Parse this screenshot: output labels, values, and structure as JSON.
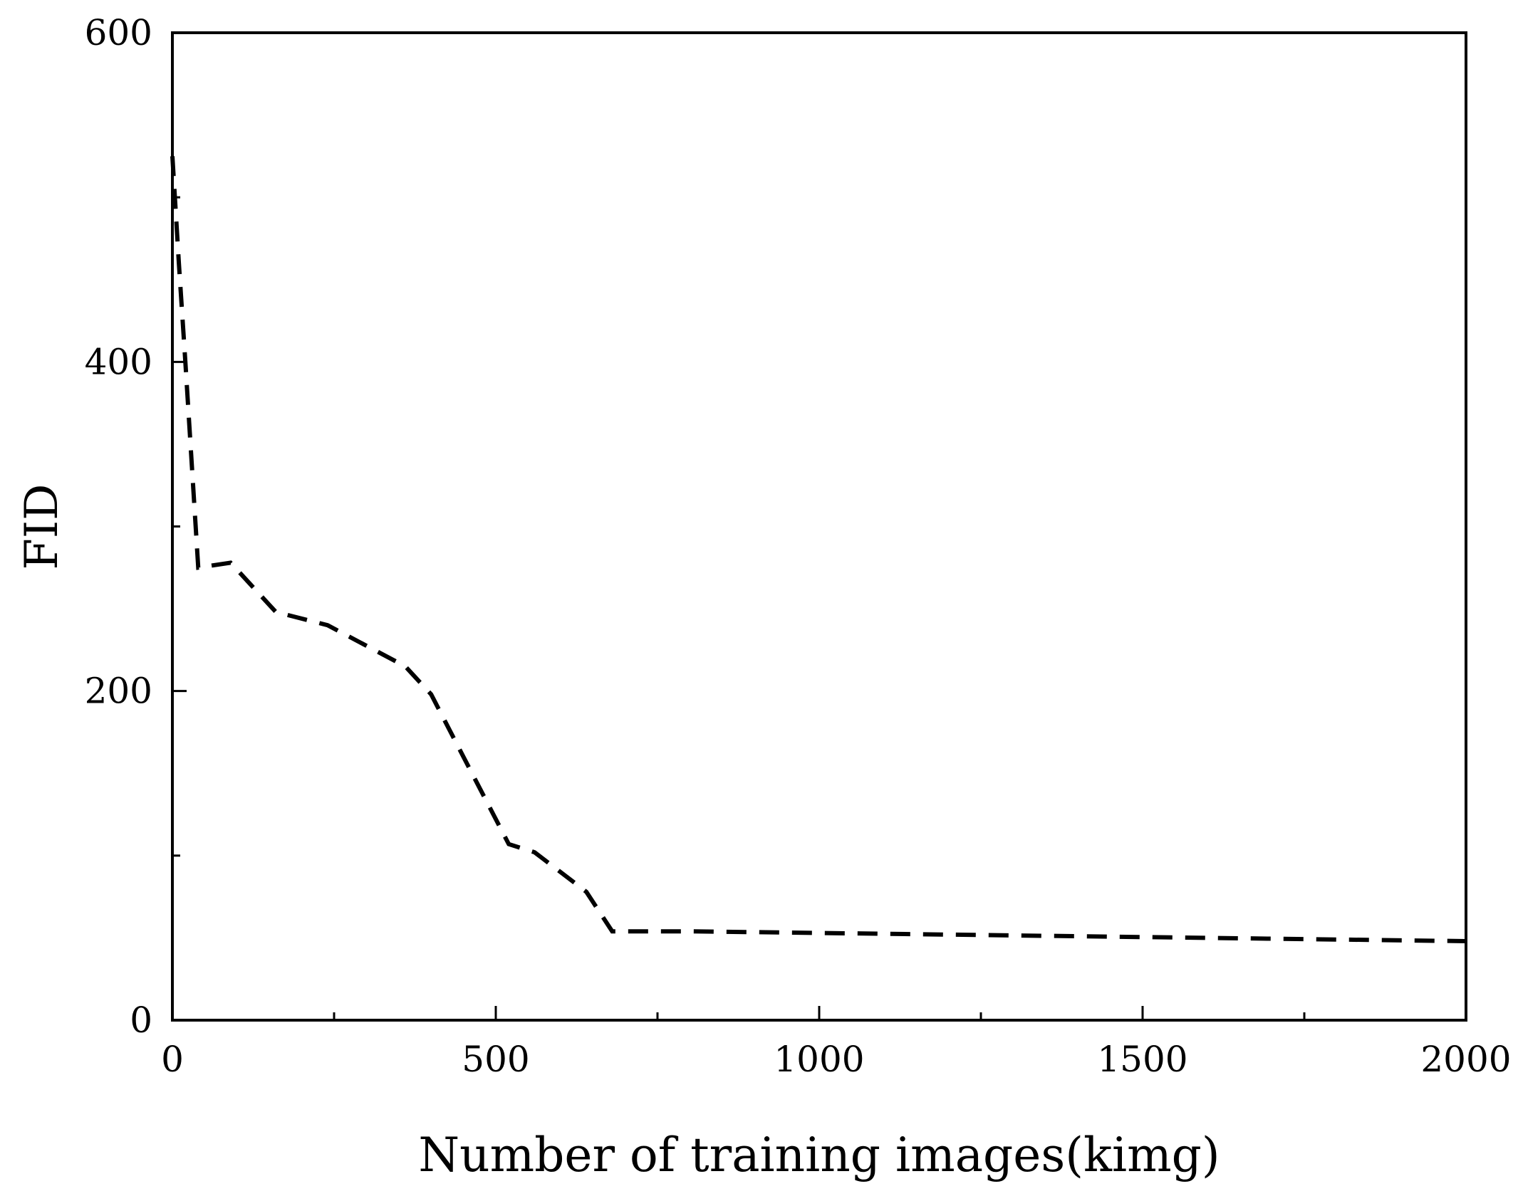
{
  "chart_data": {
    "type": "line",
    "xlabel": "Number of training images(kimg)",
    "ylabel": "FID",
    "xlim": [
      0,
      2000
    ],
    "ylim": [
      0,
      600
    ],
    "x_ticks": [
      0,
      500,
      1000,
      1500,
      2000
    ],
    "x_tick_labels": [
      "0",
      "500",
      "1000",
      "1500",
      "2000"
    ],
    "y_ticks": [
      0,
      200,
      400,
      600
    ],
    "y_tick_labels": [
      "0",
      "200",
      "400",
      "600"
    ],
    "x_minor_ticks": [
      250,
      750,
      1250,
      1750
    ],
    "y_minor_ticks": [
      100,
      300,
      500
    ],
    "grid": false,
    "series": [
      {
        "color": "#000000",
        "line_style": "dashed",
        "x": [
          0,
          10,
          20,
          40,
          90,
          160,
          240,
          360,
          400,
          450,
          520,
          560,
          640,
          680,
          800,
          1000,
          1200,
          1400,
          1600,
          1800,
          2000
        ],
        "y": [
          525,
          460,
          400,
          275,
          278,
          248,
          240,
          215,
          198,
          160,
          107,
          102,
          78,
          54,
          54,
          53,
          52,
          51,
          50,
          49,
          48
        ]
      }
    ]
  }
}
